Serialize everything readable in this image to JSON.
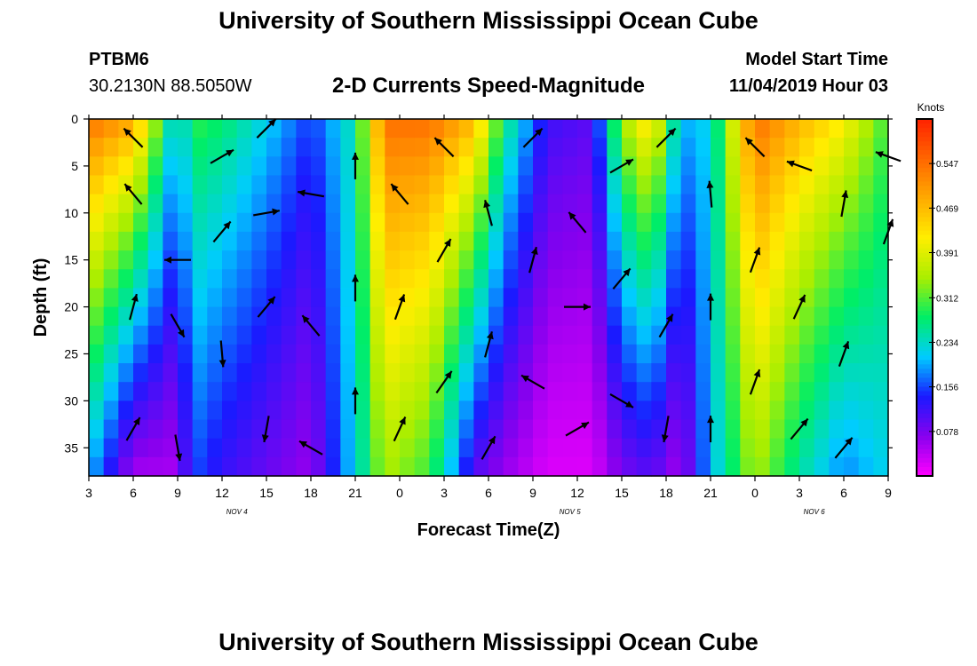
{
  "page": {
    "title_top": "University of Southern Mississippi Ocean Cube",
    "title_bottom": "University of Southern Mississippi Ocean Cube",
    "station_id": "PTBM6",
    "station_coords": "30.2130N 88.5050W",
    "subtitle": "2-D Currents Speed-Magnitude",
    "model_start_label": "Model Start Time",
    "model_start_time": "11/04/2019 Hour 03"
  },
  "chart_data": {
    "type": "heatmap",
    "title": "2-D Currents Speed-Magnitude",
    "xlabel": "Forecast Time(Z)",
    "ylabel": "Depth (ft)",
    "xlim": [
      3,
      57
    ],
    "ylim": [
      0,
      38
    ],
    "y_inverted": true,
    "x_ticks": [
      {
        "h": 3,
        "label": "3"
      },
      {
        "h": 6,
        "label": "6"
      },
      {
        "h": 9,
        "label": "9"
      },
      {
        "h": 12,
        "label": "12"
      },
      {
        "h": 15,
        "label": "15"
      },
      {
        "h": 18,
        "label": "18"
      },
      {
        "h": 21,
        "label": "21"
      },
      {
        "h": 24,
        "label": "0"
      },
      {
        "h": 27,
        "label": "3"
      },
      {
        "h": 30,
        "label": "6"
      },
      {
        "h": 33,
        "label": "9"
      },
      {
        "h": 36,
        "label": "12"
      },
      {
        "h": 39,
        "label": "15"
      },
      {
        "h": 42,
        "label": "18"
      },
      {
        "h": 45,
        "label": "21"
      },
      {
        "h": 48,
        "label": "0"
      },
      {
        "h": 51,
        "label": "3"
      },
      {
        "h": 54,
        "label": "6"
      },
      {
        "h": 57,
        "label": "9"
      }
    ],
    "date_labels": [
      {
        "h": 13,
        "label": "NOV 4"
      },
      {
        "h": 35.5,
        "label": "NOV 5"
      },
      {
        "h": 52,
        "label": "NOV 6"
      }
    ],
    "y_ticks": [
      0,
      5,
      10,
      15,
      20,
      25,
      30,
      35
    ],
    "colorbar": {
      "title": "Knots",
      "range": [
        0,
        0.625
      ],
      "tick_labels": [
        "0.078",
        "0.156",
        "0.234",
        "0.312",
        "0.391",
        "0.469",
        "0.547"
      ],
      "colors": [
        "#ff00ff",
        "#8800ee",
        "#1a1aff",
        "#00ccff",
        "#00ee66",
        "#aaee00",
        "#ffee00",
        "#ffaa00",
        "#ff6600",
        "#ff2200"
      ]
    },
    "speed_profiles": [
      {
        "h": 3,
        "surface": 0.55,
        "deep": 0.2
      },
      {
        "h": 6,
        "surface": 0.5,
        "deep": 0.05
      },
      {
        "h": 9,
        "surface": 0.2,
        "deep": 0.05
      },
      {
        "h": 10,
        "surface": 0.3,
        "deep": 0.16
      },
      {
        "h": 12,
        "surface": 0.28,
        "deep": 0.12
      },
      {
        "h": 15,
        "surface": 0.22,
        "deep": 0.09
      },
      {
        "h": 18,
        "surface": 0.15,
        "deep": 0.06
      },
      {
        "h": 21,
        "surface": 0.25,
        "deep": 0.22
      },
      {
        "h": 23,
        "surface": 0.55,
        "deep": 0.35
      },
      {
        "h": 26,
        "surface": 0.55,
        "deep": 0.3
      },
      {
        "h": 29,
        "surface": 0.48,
        "deep": 0.1
      },
      {
        "h": 31,
        "surface": 0.28,
        "deep": 0.06
      },
      {
        "h": 34,
        "surface": 0.12,
        "deep": 0.02
      },
      {
        "h": 37,
        "surface": 0.1,
        "deep": 0.02
      },
      {
        "h": 39,
        "surface": 0.35,
        "deep": 0.08
      },
      {
        "h": 41,
        "surface": 0.45,
        "deep": 0.1
      },
      {
        "h": 43,
        "surface": 0.2,
        "deep": 0.05
      },
      {
        "h": 45,
        "surface": 0.22,
        "deep": 0.2
      },
      {
        "h": 48,
        "surface": 0.55,
        "deep": 0.35
      },
      {
        "h": 51,
        "surface": 0.48,
        "deep": 0.25
      },
      {
        "h": 54,
        "surface": 0.42,
        "deep": 0.18
      },
      {
        "h": 57,
        "surface": 0.3,
        "deep": 0.22
      }
    ],
    "vectors": [
      {
        "h": 6,
        "d": 2,
        "dir": 315
      },
      {
        "h": 6,
        "d": 8,
        "dir": 320
      },
      {
        "h": 6,
        "d": 20,
        "dir": 15
      },
      {
        "h": 6,
        "d": 33,
        "dir": 30
      },
      {
        "h": 9,
        "d": 15,
        "dir": 270
      },
      {
        "h": 9,
        "d": 22,
        "dir": 150
      },
      {
        "h": 9,
        "d": 35,
        "dir": 170
      },
      {
        "h": 12,
        "d": 4,
        "dir": 60
      },
      {
        "h": 12,
        "d": 12,
        "dir": 40
      },
      {
        "h": 12,
        "d": 25,
        "dir": 175
      },
      {
        "h": 15,
        "d": 1,
        "dir": 45
      },
      {
        "h": 15,
        "d": 10,
        "dir": 80
      },
      {
        "h": 15,
        "d": 20,
        "dir": 40
      },
      {
        "h": 15,
        "d": 33,
        "dir": 190
      },
      {
        "h": 18,
        "d": 8,
        "dir": 280
      },
      {
        "h": 18,
        "d": 22,
        "dir": 320
      },
      {
        "h": 18,
        "d": 35,
        "dir": 300
      },
      {
        "h": 21,
        "d": 5,
        "dir": 0
      },
      {
        "h": 21,
        "d": 18,
        "dir": 0
      },
      {
        "h": 21,
        "d": 30,
        "dir": 0
      },
      {
        "h": 24,
        "d": 8,
        "dir": 320
      },
      {
        "h": 24,
        "d": 20,
        "dir": 20
      },
      {
        "h": 24,
        "d": 33,
        "dir": 25
      },
      {
        "h": 27,
        "d": 3,
        "dir": 315
      },
      {
        "h": 27,
        "d": 14,
        "dir": 30
      },
      {
        "h": 27,
        "d": 28,
        "dir": 35
      },
      {
        "h": 30,
        "d": 10,
        "dir": 345
      },
      {
        "h": 30,
        "d": 24,
        "dir": 15
      },
      {
        "h": 30,
        "d": 35,
        "dir": 30
      },
      {
        "h": 33,
        "d": 2,
        "dir": 45
      },
      {
        "h": 33,
        "d": 15,
        "dir": 15
      },
      {
        "h": 33,
        "d": 28,
        "dir": 300
      },
      {
        "h": 36,
        "d": 11,
        "dir": 320
      },
      {
        "h": 36,
        "d": 20,
        "dir": 90
      },
      {
        "h": 36,
        "d": 33,
        "dir": 60
      },
      {
        "h": 39,
        "d": 5,
        "dir": 60
      },
      {
        "h": 39,
        "d": 17,
        "dir": 40
      },
      {
        "h": 39,
        "d": 30,
        "dir": 120
      },
      {
        "h": 42,
        "d": 2,
        "dir": 45
      },
      {
        "h": 42,
        "d": 22,
        "dir": 30
      },
      {
        "h": 42,
        "d": 33,
        "dir": 190
      },
      {
        "h": 45,
        "d": 8,
        "dir": 355
      },
      {
        "h": 45,
        "d": 20,
        "dir": 0
      },
      {
        "h": 45,
        "d": 33,
        "dir": 0
      },
      {
        "h": 48,
        "d": 3,
        "dir": 315
      },
      {
        "h": 48,
        "d": 15,
        "dir": 20
      },
      {
        "h": 48,
        "d": 28,
        "dir": 20
      },
      {
        "h": 51,
        "d": 5,
        "dir": 290
      },
      {
        "h": 51,
        "d": 20,
        "dir": 25
      },
      {
        "h": 51,
        "d": 33,
        "dir": 40
      },
      {
        "h": 54,
        "d": 9,
        "dir": 10
      },
      {
        "h": 54,
        "d": 25,
        "dir": 20
      },
      {
        "h": 54,
        "d": 35,
        "dir": 40
      },
      {
        "h": 57,
        "d": 4,
        "dir": 290
      },
      {
        "h": 57,
        "d": 12,
        "dir": 20
      }
    ]
  }
}
